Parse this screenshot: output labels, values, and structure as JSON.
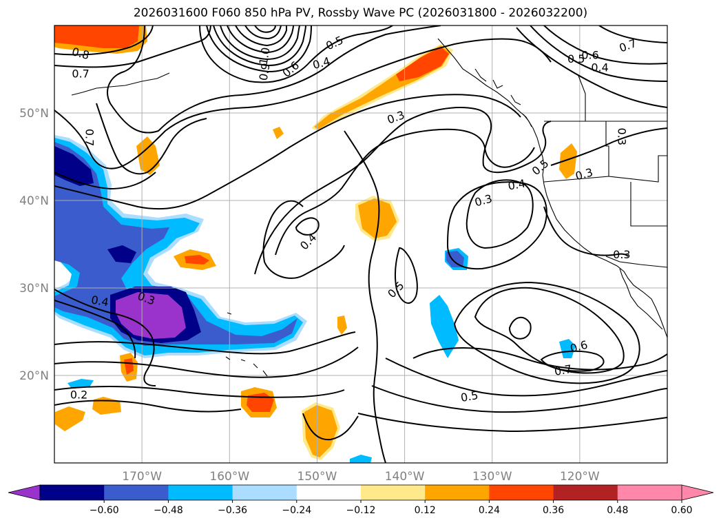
{
  "title": "2026031600 F060 850 hPa PV, Rossby Wave PC (2026031800 - 2026032200)",
  "map": {
    "lon_range": [
      -180,
      -110
    ],
    "lat_range": [
      10,
      60
    ],
    "lat_ticks": [
      {
        "value": 50,
        "label": "50°N"
      },
      {
        "value": 40,
        "label": "40°N"
      },
      {
        "value": 30,
        "label": "30°N"
      },
      {
        "value": 20,
        "label": "20°N"
      }
    ],
    "lon_ticks": [
      {
        "value": -170,
        "label": "170°W"
      },
      {
        "value": -160,
        "label": "160°W"
      },
      {
        "value": -150,
        "label": "150°W"
      },
      {
        "value": -140,
        "label": "140°W"
      },
      {
        "value": -130,
        "label": "130°W"
      },
      {
        "value": -120,
        "label": "120°W"
      }
    ],
    "grid": true,
    "contour_labels": [
      {
        "text": "0.8",
        "lon": -177,
        "lat": 56.8,
        "rot": 15
      },
      {
        "text": "0.7",
        "lon": -177,
        "lat": 54.5,
        "rot": 0
      },
      {
        "text": "1.0",
        "lon": -156,
        "lat": 56.5,
        "rot": -80
      },
      {
        "text": "0.9",
        "lon": -156,
        "lat": 54.7,
        "rot": -80
      },
      {
        "text": "0.6",
        "lon": -153,
        "lat": 55,
        "rot": -40
      },
      {
        "text": "0.5",
        "lon": -148,
        "lat": 58,
        "rot": -25
      },
      {
        "text": "0.4",
        "lon": -149.5,
        "lat": 55.7,
        "rot": -15
      },
      {
        "text": "0.3",
        "lon": -141,
        "lat": 49.5,
        "rot": -20
      },
      {
        "text": "0.6",
        "lon": -118.8,
        "lat": 56.6,
        "rot": 0
      },
      {
        "text": "0.5",
        "lon": -120.4,
        "lat": 56.2,
        "rot": 0
      },
      {
        "text": "0.4",
        "lon": -117.7,
        "lat": 55.2,
        "rot": 0
      },
      {
        "text": "0.7",
        "lon": -114.5,
        "lat": 57.7,
        "rot": -20
      },
      {
        "text": "0.7",
        "lon": -176,
        "lat": 47.2,
        "rot": 90
      },
      {
        "text": "0.3",
        "lon": -115.2,
        "lat": 47.3,
        "rot": 90
      },
      {
        "text": "0.5",
        "lon": -124.5,
        "lat": 43.8,
        "rot": -40
      },
      {
        "text": "0.4",
        "lon": -127.2,
        "lat": 41.8,
        "rot": -10
      },
      {
        "text": "0.3",
        "lon": -119.5,
        "lat": 43,
        "rot": -15
      },
      {
        "text": "0.3",
        "lon": -131,
        "lat": 40,
        "rot": -15
      },
      {
        "text": "0.4",
        "lon": -151,
        "lat": 35.3,
        "rot": -45
      },
      {
        "text": "0.5",
        "lon": -141,
        "lat": 29.8,
        "rot": -45
      },
      {
        "text": "0.3",
        "lon": -115.2,
        "lat": 33.8,
        "rot": 0
      },
      {
        "text": "0.4",
        "lon": -174.8,
        "lat": 28.5,
        "rot": 10
      },
      {
        "text": "0.3",
        "lon": -169.5,
        "lat": 28.8,
        "rot": 20
      },
      {
        "text": "0.6",
        "lon": -120.1,
        "lat": 23.3,
        "rot": -15
      },
      {
        "text": "0.7",
        "lon": -121.9,
        "lat": 20.6,
        "rot": -10
      },
      {
        "text": "0.5",
        "lon": -132.6,
        "lat": 17.6,
        "rot": -10
      },
      {
        "text": "0.2",
        "lon": -177.2,
        "lat": 17.8,
        "rot": 0
      }
    ]
  },
  "colorbar": {
    "ticks": [
      "−0.60",
      "−0.48",
      "−0.36",
      "−0.24",
      "−0.12",
      "0.12",
      "0.24",
      "0.36",
      "0.48",
      "0.60"
    ],
    "colors": [
      "#9933cc",
      "#000088",
      "#3a5ccc",
      "#00bbff",
      "#aaddff",
      "#ffffff",
      "#ffe98a",
      "#ffa500",
      "#ff4500",
      "#b22222",
      "#ff88aa",
      "#ff88aa"
    ]
  }
}
